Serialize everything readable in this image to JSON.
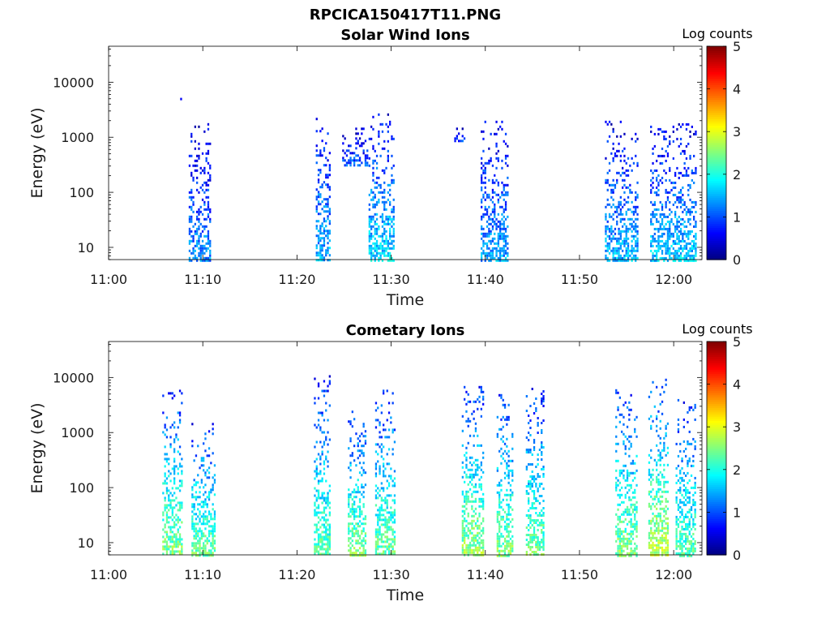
{
  "figure_title": "RPCICA150417T11.PNG",
  "chart_data": [
    {
      "type": "heatmap",
      "title": "Solar Wind Ions",
      "xlabel": "Time",
      "ylabel": "Energy (eV)",
      "yscale": "log",
      "x_range_minutes": [
        0,
        63
      ],
      "x_ticks": [
        {
          "minute": 0,
          "label": "11:00"
        },
        {
          "minute": 10,
          "label": "11:10"
        },
        {
          "minute": 20,
          "label": "11:20"
        },
        {
          "minute": 30,
          "label": "11:30"
        },
        {
          "minute": 40,
          "label": "11:40"
        },
        {
          "minute": 50,
          "label": "11:50"
        },
        {
          "minute": 60,
          "label": "12:00"
        }
      ],
      "y_range": [
        6,
        45000
      ],
      "y_ticks": [
        {
          "value": 10,
          "label": "10"
        },
        {
          "value": 100,
          "label": "100"
        },
        {
          "value": 1000,
          "label": "1000"
        },
        {
          "value": 10000,
          "label": "10000"
        }
      ],
      "colorbar": {
        "label": "Log counts",
        "range": [
          0,
          5
        ],
        "ticks": [
          {
            "value": 0,
            "label": "0"
          },
          {
            "value": 1,
            "label": "1"
          },
          {
            "value": 2,
            "label": "2"
          },
          {
            "value": 3,
            "label": "3"
          },
          {
            "value": 4,
            "label": "4"
          },
          {
            "value": 5,
            "label": "5"
          }
        ],
        "colormap": "jet"
      },
      "bursts": [
        {
          "t_start": 7.6,
          "t_end": 7.9,
          "e_min": 4800,
          "e_max": 5200,
          "level": 0.7
        },
        {
          "t_start": 8.5,
          "t_end": 10.8,
          "e_min": 6,
          "e_max": 2000,
          "level": 1.2
        },
        {
          "t_start": 22.0,
          "t_end": 23.4,
          "e_min": 6,
          "e_max": 2500,
          "level": 1.4
        },
        {
          "t_start": 24.8,
          "t_end": 27.4,
          "e_min": 300,
          "e_max": 1500,
          "level": 1.0
        },
        {
          "t_start": 27.6,
          "t_end": 30.2,
          "e_min": 6,
          "e_max": 3000,
          "level": 1.6
        },
        {
          "t_start": 36.5,
          "t_end": 37.8,
          "e_min": 900,
          "e_max": 1500,
          "level": 0.8
        },
        {
          "t_start": 39.5,
          "t_end": 42.4,
          "e_min": 6,
          "e_max": 2000,
          "level": 1.3
        },
        {
          "t_start": 52.7,
          "t_end": 56.2,
          "e_min": 6,
          "e_max": 2000,
          "level": 1.4
        },
        {
          "t_start": 57.5,
          "t_end": 62.3,
          "e_min": 6,
          "e_max": 1800,
          "level": 1.5
        }
      ]
    },
    {
      "type": "heatmap",
      "title": "Cometary Ions",
      "xlabel": "Time",
      "ylabel": "Energy (eV)",
      "yscale": "log",
      "x_range_minutes": [
        0,
        63
      ],
      "x_ticks": [
        {
          "minute": 0,
          "label": "11:00"
        },
        {
          "minute": 10,
          "label": "11:10"
        },
        {
          "minute": 20,
          "label": "11:20"
        },
        {
          "minute": 30,
          "label": "11:30"
        },
        {
          "minute": 40,
          "label": "11:40"
        },
        {
          "minute": 50,
          "label": "11:50"
        },
        {
          "minute": 60,
          "label": "12:00"
        }
      ],
      "y_range": [
        6,
        45000
      ],
      "y_ticks": [
        {
          "value": 10,
          "label": "10"
        },
        {
          "value": 100,
          "label": "100"
        },
        {
          "value": 1000,
          "label": "1000"
        },
        {
          "value": 10000,
          "label": "10000"
        }
      ],
      "colorbar": {
        "label": "Log counts",
        "range": [
          0,
          5
        ],
        "ticks": [
          {
            "value": 0,
            "label": "0"
          },
          {
            "value": 1,
            "label": "1"
          },
          {
            "value": 2,
            "label": "2"
          },
          {
            "value": 3,
            "label": "3"
          },
          {
            "value": 4,
            "label": "4"
          },
          {
            "value": 5,
            "label": "5"
          }
        ],
        "colormap": "jet"
      },
      "bursts": [
        {
          "t_start": 5.7,
          "t_end": 7.8,
          "e_min": 6,
          "e_max": 6000,
          "level": 2.3
        },
        {
          "t_start": 8.8,
          "t_end": 11.3,
          "e_min": 6,
          "e_max": 1500,
          "level": 2.2
        },
        {
          "t_start": 21.8,
          "t_end": 23.5,
          "e_min": 6,
          "e_max": 11000,
          "level": 2.1
        },
        {
          "t_start": 25.4,
          "t_end": 27.2,
          "e_min": 6,
          "e_max": 2500,
          "level": 2.3
        },
        {
          "t_start": 28.3,
          "t_end": 30.3,
          "e_min": 6,
          "e_max": 6000,
          "level": 2.2
        },
        {
          "t_start": 37.5,
          "t_end": 39.8,
          "e_min": 6,
          "e_max": 7000,
          "level": 2.4
        },
        {
          "t_start": 41.2,
          "t_end": 42.8,
          "e_min": 6,
          "e_max": 5000,
          "level": 2.3
        },
        {
          "t_start": 44.3,
          "t_end": 46.2,
          "e_min": 6,
          "e_max": 6500,
          "level": 2.2
        },
        {
          "t_start": 53.8,
          "t_end": 56.0,
          "e_min": 6,
          "e_max": 7500,
          "level": 2.3
        },
        {
          "t_start": 57.3,
          "t_end": 59.3,
          "e_min": 6,
          "e_max": 9500,
          "level": 2.6
        },
        {
          "t_start": 60.2,
          "t_end": 62.2,
          "e_min": 6,
          "e_max": 4500,
          "level": 2.1
        }
      ]
    }
  ]
}
